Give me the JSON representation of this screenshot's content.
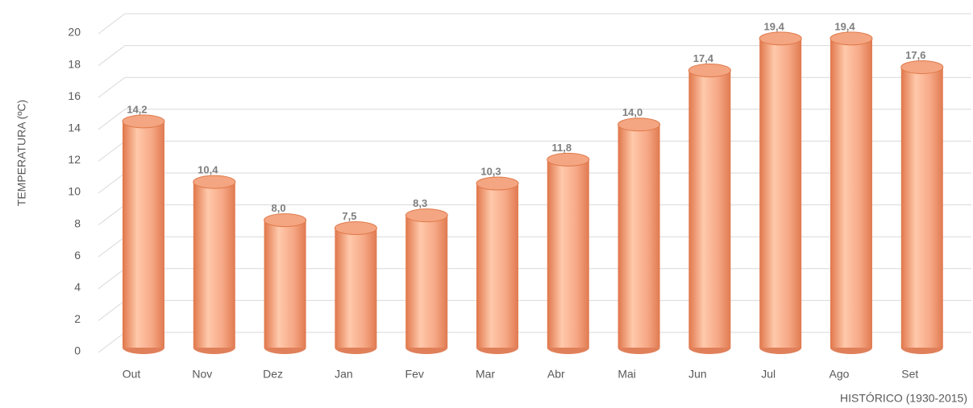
{
  "chart_data": {
    "type": "bar",
    "x_label": "HISTÓRICO (1930-2015)",
    "y_label": "TEMPERATURA (ºC)",
    "categories": [
      "Out",
      "Nov",
      "Dez",
      "Jan",
      "Fev",
      "Mar",
      "Abr",
      "Mai",
      "Jun",
      "Jul",
      "Ago",
      "Set"
    ],
    "values": [
      14.2,
      10.4,
      8.0,
      7.5,
      8.3,
      10.3,
      11.8,
      14.0,
      17.4,
      19.4,
      19.4,
      17.6
    ],
    "value_labels": [
      "14,2",
      "10,4",
      "8,0",
      "7,5",
      "8,3",
      "10,3",
      "11,8",
      "14,0",
      "17,4",
      "19,4",
      "19,4",
      "17,6"
    ],
    "color": "#f4a582",
    "ylim": [
      0,
      20
    ],
    "yticks": [
      0,
      2,
      4,
      6,
      8,
      10,
      12,
      14,
      16,
      18,
      20
    ],
    "grid": true
  }
}
